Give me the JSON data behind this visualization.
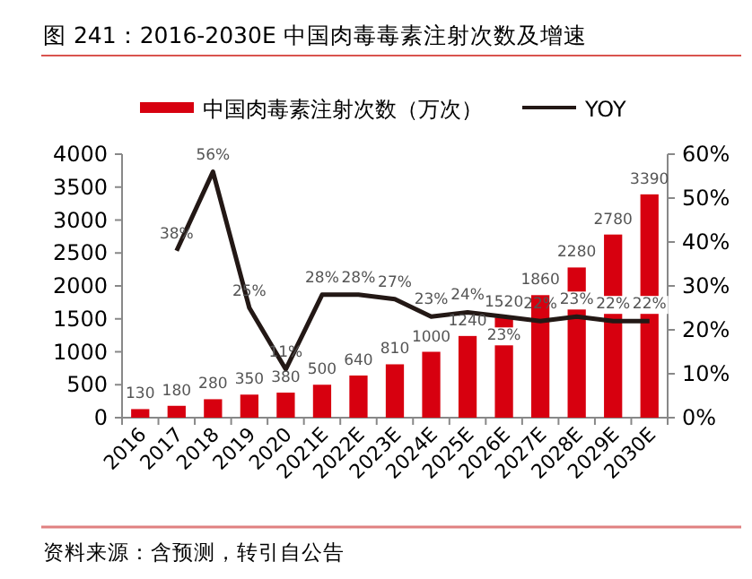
{
  "chart_data": {
    "type": "bar",
    "title": "图 241：2016-2030E 中国肉毒毒素注射次数及增速",
    "categories": [
      "2016",
      "2017",
      "2018",
      "2019",
      "2020",
      "2021E",
      "2022E",
      "2023E",
      "2024E",
      "2025E",
      "2026E",
      "2027E",
      "2028E",
      "2029E",
      "2030E"
    ],
    "series": [
      {
        "name": "中国肉毒素注射次数（万次）",
        "color": "#d7000f",
        "values": [
          130,
          180,
          280,
          350,
          380,
          500,
          640,
          810,
          1000,
          1240,
          1520,
          1860,
          2280,
          2780,
          3390
        ],
        "value_labels": [
          "130",
          "180",
          "280",
          "350",
          "380",
          "500",
          "640",
          "810",
          "1000",
          "1240",
          "1520",
          "1860",
          "2280",
          "2780",
          "3390"
        ]
      },
      {
        "name": "YOY",
        "type": "line",
        "axis": "y2",
        "color": "#231815",
        "values": [
          null,
          38,
          56,
          25,
          11,
          28,
          28,
          27,
          23,
          24,
          23,
          22,
          23,
          22,
          22
        ],
        "value_labels": [
          null,
          "38%",
          "56%",
          "25%",
          "11%",
          "28%",
          "28%",
          "27%",
          "23%",
          "24%",
          "23%",
          "22%",
          "23%",
          "22%",
          "22%"
        ]
      }
    ],
    "ylim": [
      0,
      4000
    ],
    "yticks": [
      0,
      500,
      1000,
      1500,
      2000,
      2500,
      3000,
      3500,
      4000
    ],
    "y2lim": [
      0,
      60
    ],
    "y2ticks": [
      {
        "value": 0,
        "label": "0%"
      },
      {
        "value": 10,
        "label": "10%"
      },
      {
        "value": 20,
        "label": "20%"
      },
      {
        "value": 30,
        "label": "30%"
      },
      {
        "value": 40,
        "label": "40%"
      },
      {
        "value": 50,
        "label": "50%"
      },
      {
        "value": 60,
        "label": "60%"
      }
    ],
    "legend": "top",
    "grid": false,
    "annotations": [
      "资料来源：含预测，转引自公告"
    ]
  }
}
